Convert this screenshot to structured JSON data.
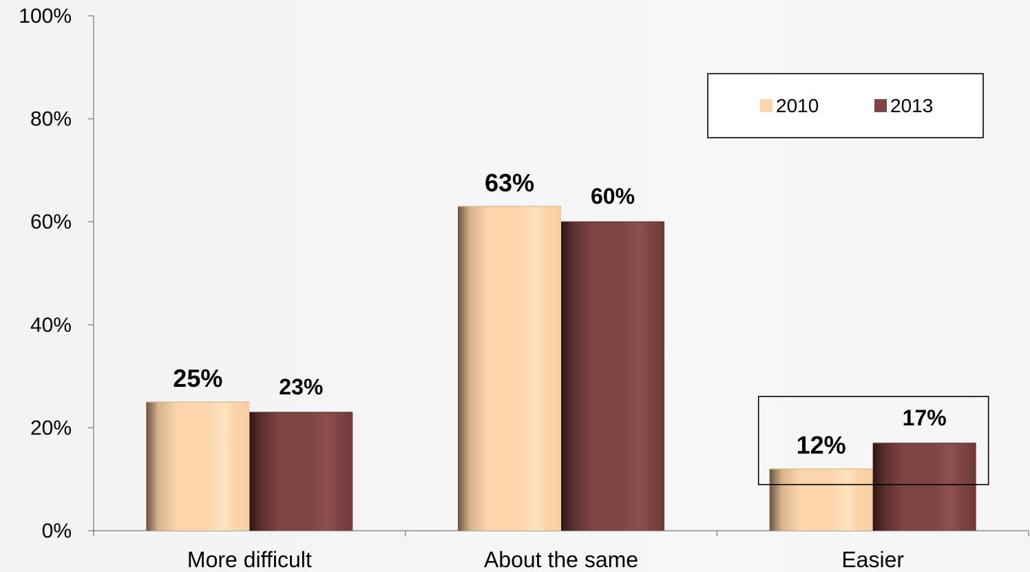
{
  "chart_data": {
    "type": "bar",
    "categories": [
      "More difficult",
      "About the same",
      "Easier"
    ],
    "series": [
      {
        "name": "2010",
        "values": [
          25,
          63,
          12
        ],
        "color": "#fcd5aa"
      },
      {
        "name": "2013",
        "values": [
          23,
          60,
          17
        ],
        "color": "#7f4545"
      }
    ],
    "data_labels": [
      [
        "25%",
        "63%",
        "12%"
      ],
      [
        "23%",
        "60%",
        "17%"
      ]
    ],
    "ylim": [
      0,
      100
    ],
    "yticks": [
      0,
      20,
      40,
      60,
      80,
      100
    ],
    "ytick_labels": [
      "0%",
      "20%",
      "40%",
      "60%",
      "80%",
      "100%"
    ],
    "legend_position": "top-right",
    "highlight_box": "Easier",
    "grid": false
  }
}
